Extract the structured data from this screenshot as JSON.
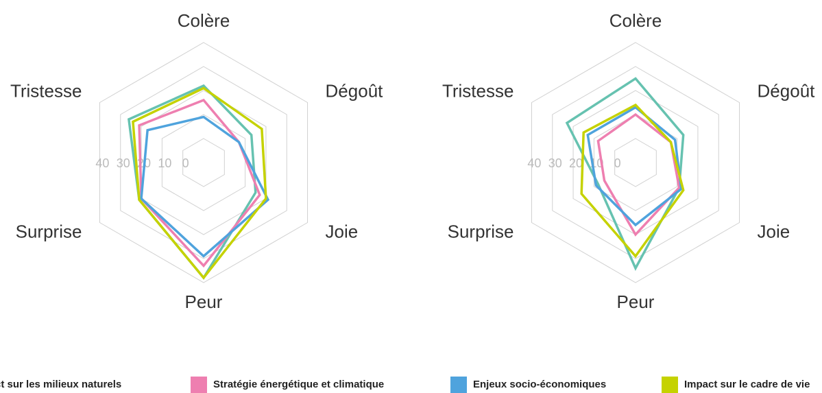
{
  "chart_data": [
    {
      "type": "radar",
      "categories": [
        "Colère",
        "Dégoût",
        "Joie",
        "Peur",
        "Surprise",
        "Tristesse"
      ],
      "rlim": [
        0,
        40
      ],
      "rticks": [
        0,
        10,
        20,
        30,
        40
      ],
      "series": [
        {
          "name": "Impact sur les milieux naturels",
          "color": "#66c2b0",
          "values": [
            22,
            13,
            15,
            38,
            21,
            26
          ]
        },
        {
          "name": "Stratégie énergétique et climatique",
          "color": "#ee7fb0",
          "values": [
            16,
            7,
            17,
            33,
            20,
            21
          ]
        },
        {
          "name": "Enjeux socio-économiques",
          "color": "#4fa3dd",
          "values": [
            9,
            7,
            21,
            29,
            20,
            17
          ]
        },
        {
          "name": "Impact sur le cadre de vie",
          "color": "#c5d200",
          "values": [
            21,
            18,
            20,
            38,
            21,
            24
          ]
        }
      ]
    },
    {
      "type": "radar",
      "categories": [
        "Colère",
        "Dégoût",
        "Joie",
        "Peur",
        "Surprise",
        "Tristesse"
      ],
      "rlim": [
        0,
        40
      ],
      "rticks": [
        0,
        10,
        20,
        30,
        40
      ],
      "series": [
        {
          "name": "Impact sur les milieux naturels",
          "color": "#66c2b0",
          "values": [
            25,
            13,
            11,
            34,
            8,
            23
          ]
        },
        {
          "name": "Stratégie énergétique et climatique",
          "color": "#ee7fb0",
          "values": [
            10,
            7,
            11,
            20,
            5,
            8
          ]
        },
        {
          "name": "Enjeux socio-économiques",
          "color": "#4fa3dd",
          "values": [
            13,
            9,
            12,
            16,
            9,
            13
          ]
        },
        {
          "name": "Impact sur le cadre de vie",
          "color": "#c5d200",
          "values": [
            14,
            7,
            13,
            29,
            16,
            15
          ]
        }
      ]
    }
  ]
}
